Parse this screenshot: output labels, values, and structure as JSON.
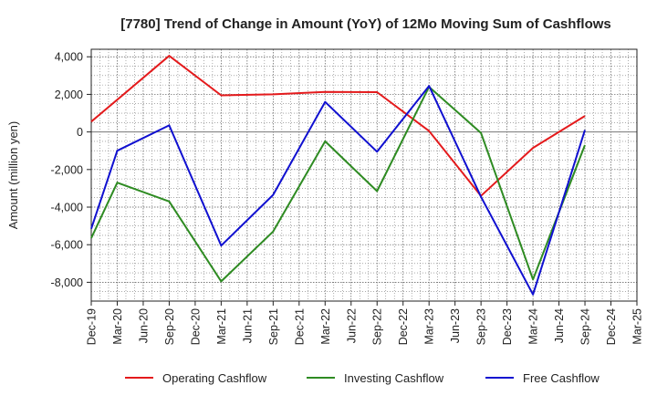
{
  "chart_data": {
    "type": "line",
    "title": "[7780]  Trend of Change in Amount (YoY) of 12Mo Moving Sum of Cashflows",
    "xlabel": "",
    "ylabel": "Amount (million yen)",
    "ylim": [
      -9000,
      4400
    ],
    "yticks": [
      4000,
      2000,
      0,
      -2000,
      -4000,
      -6000,
      -8000
    ],
    "ytick_labels": [
      "4,000",
      "2,000",
      "0",
      "-2,000",
      "-4,000",
      "-6,000",
      "-8,000"
    ],
    "categories": [
      "Dec-19",
      "Mar-20",
      "Jun-20",
      "Sep-20",
      "Dec-20",
      "Mar-21",
      "Jun-21",
      "Sep-21",
      "Dec-21",
      "Mar-22",
      "Jun-22",
      "Sep-22",
      "Dec-22",
      "Mar-23",
      "Jun-23",
      "Sep-23",
      "Dec-23",
      "Mar-24",
      "Jun-24",
      "Sep-24",
      "Dec-24",
      "Mar-25"
    ],
    "grid": true,
    "legend_position": "bottom",
    "series": [
      {
        "name": "Operating Cashflow",
        "color": "#e41a1c",
        "values": [
          550,
          null,
          null,
          4050,
          null,
          1950,
          null,
          2000,
          null,
          2130,
          null,
          2120,
          null,
          50,
          null,
          -3400,
          null,
          -850,
          null,
          850,
          null,
          null
        ]
      },
      {
        "name": "Investing Cashflow",
        "color": "#2e8b22",
        "values": [
          -5650,
          -2700,
          null,
          -3700,
          null,
          -7950,
          null,
          -5300,
          null,
          -500,
          null,
          -3150,
          null,
          2400,
          null,
          -50,
          null,
          -7850,
          null,
          -700,
          null,
          null
        ]
      },
      {
        "name": "Free Cashflow",
        "color": "#1010d0",
        "values": [
          -5150,
          -1000,
          null,
          350,
          null,
          -6050,
          null,
          -3350,
          null,
          1600,
          null,
          -1050,
          null,
          2450,
          null,
          -3450,
          null,
          -8650,
          null,
          100,
          null,
          null
        ]
      }
    ]
  }
}
